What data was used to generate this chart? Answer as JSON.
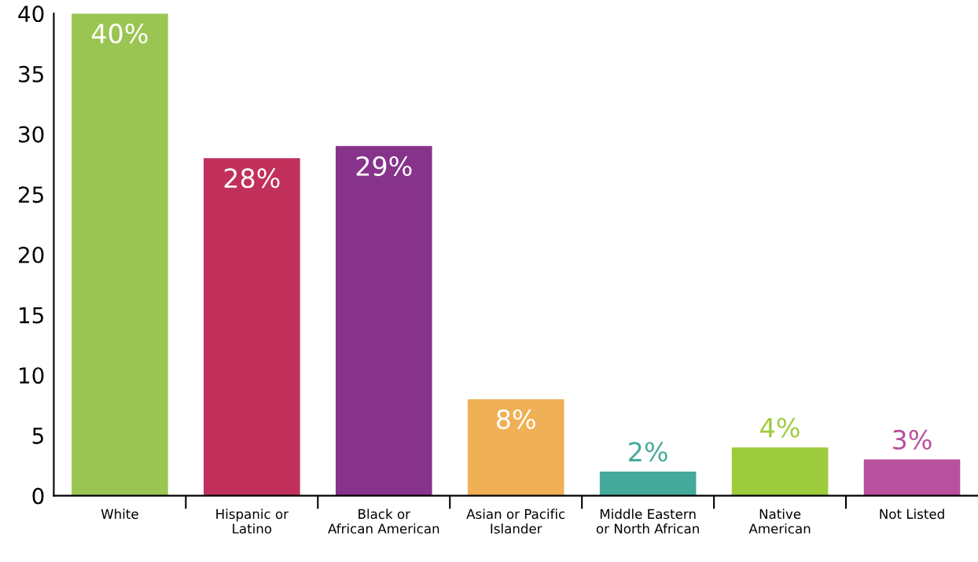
{
  "chart_data": {
    "type": "bar",
    "categories": [
      "White",
      "Hispanic or\nLatino",
      "Black or\nAfrican American",
      "Asian or Pacific\nIslander",
      "Middle Eastern\nor North African",
      "Native\nAmerican",
      "Not Listed"
    ],
    "values": [
      40,
      28,
      29,
      8,
      2,
      4,
      3
    ],
    "value_labels": [
      "40%",
      "28%",
      "29%",
      "8%",
      "2%",
      "4%",
      "3%"
    ],
    "colors": [
      "#9bc552",
      "#c1305a",
      "#87338b",
      "#f0b055",
      "#45a99b",
      "#9ecb3b",
      "#b8509d"
    ],
    "ylim": [
      0,
      40
    ],
    "yticks": [
      0,
      5,
      10,
      15,
      20,
      25,
      30,
      35,
      40
    ],
    "grid": false
  }
}
